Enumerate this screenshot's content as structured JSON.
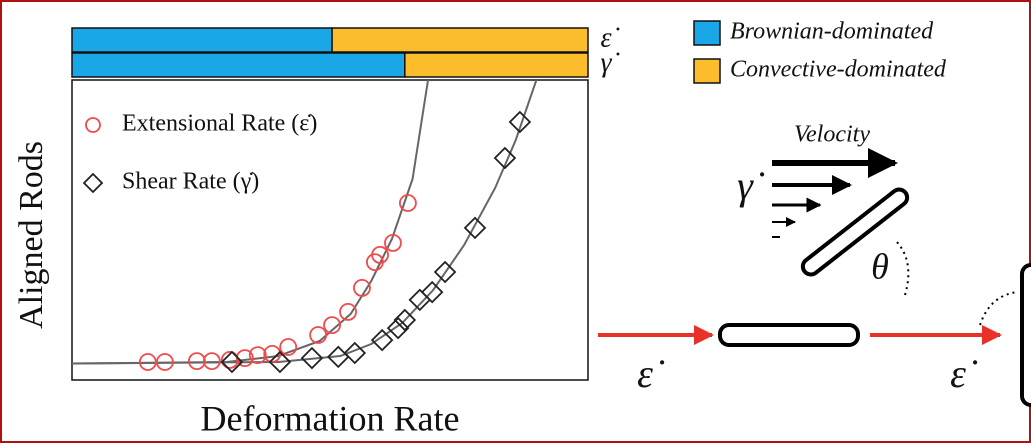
{
  "chart_data": {
    "type": "scatter",
    "xlabel": "Deformation Rate",
    "ylabel": "Aligned Rods",
    "xlim": [
      0,
      100
    ],
    "ylim": [
      0,
      100
    ],
    "regime_names": [
      "Brownian-dominated",
      "Convective-dominated"
    ],
    "regime_colors": [
      "#1aa7e8",
      "#fbbd2c"
    ],
    "regimes": [
      {
        "label": "ε̇",
        "crossover": 50.4
      },
      {
        "label": "γ̇",
        "crossover": 64.5
      }
    ],
    "series": [
      {
        "name": "Extensional Rate (ε̇)",
        "color": "#f04a4a",
        "marker": "circle",
        "x": [
          14.7,
          18.0,
          24.2,
          27.1,
          30.6,
          33.5,
          36.0,
          38.8,
          41.9,
          47.7,
          50.4,
          53.5,
          56.2,
          58.7,
          59.7,
          62.2,
          65.1
        ],
        "values": [
          6.0,
          6.0,
          6.3,
          6.3,
          6.7,
          7.3,
          8.3,
          8.7,
          11.0,
          15.0,
          18.3,
          22.7,
          30.7,
          39.3,
          41.7,
          45.7,
          59.0
        ]
      },
      {
        "name": "Shear Rate (γ̇)",
        "color": "#222222",
        "marker": "diamond",
        "x": [
          31.0,
          40.3,
          46.5,
          51.6,
          54.8,
          60.1,
          63.2,
          64.5,
          67.4,
          69.8,
          72.3,
          78.1,
          83.9,
          86.8
        ],
        "values": [
          6.0,
          6.0,
          7.3,
          7.7,
          9.0,
          13.3,
          17.3,
          20.0,
          26.7,
          29.3,
          36.0,
          50.7,
          74.0,
          86.0
        ]
      }
    ],
    "fits": [
      {
        "color": "#666666",
        "x": [
          0,
          30,
          40,
          48,
          54,
          58,
          62,
          66,
          69
        ],
        "values": [
          5.5,
          6,
          8,
          13,
          22,
          33,
          47,
          67,
          100
        ]
      },
      {
        "color": "#666666",
        "x": [
          0,
          40,
          52,
          58,
          64,
          70,
          76,
          82,
          86,
          90
        ],
        "values": [
          5.5,
          6,
          8,
          12,
          19,
          30,
          45,
          64,
          80,
          100
        ]
      }
    ]
  },
  "diagram": {
    "velocity": "Velocity",
    "shear_symbol": "γ̇",
    "angle": "θ",
    "ext_left": "ε̇",
    "ext_right": "ε̇"
  }
}
